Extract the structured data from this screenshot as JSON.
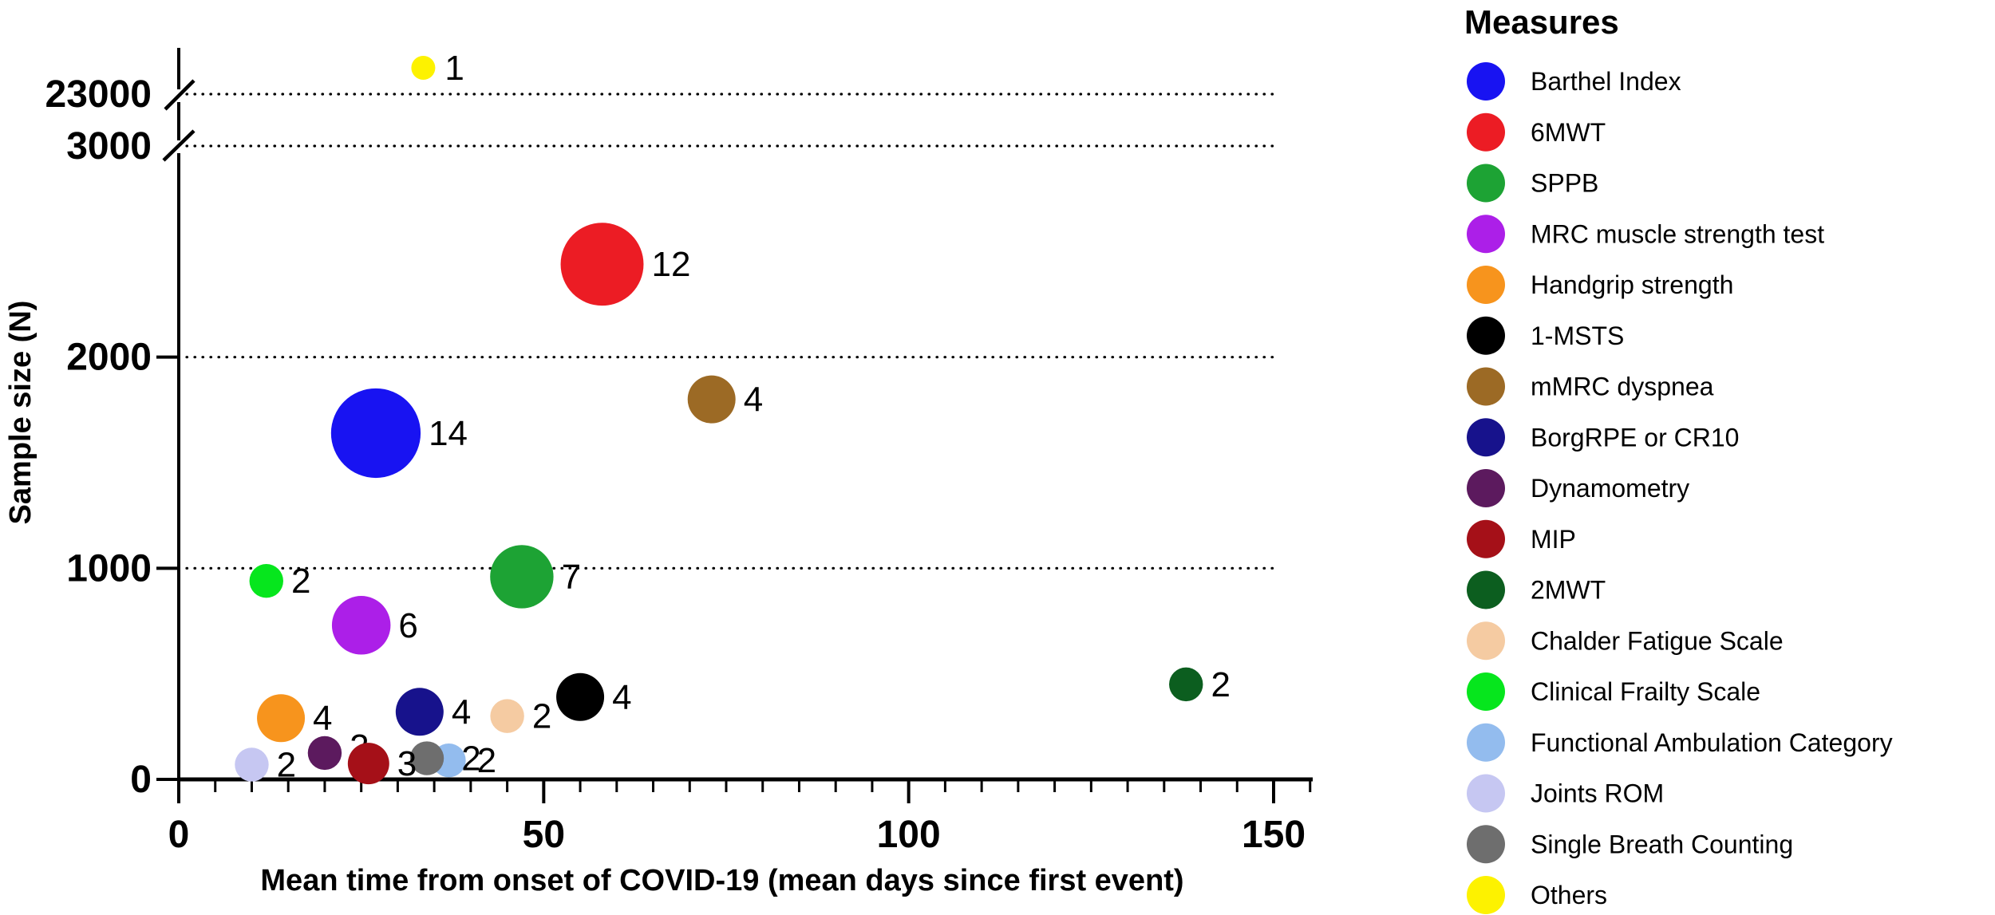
{
  "figure": {
    "kind": "bubble-plot scientific figure",
    "background": "#ffffff",
    "text_color": "#000000"
  },
  "legend": {
    "title": "Measures",
    "items": [
      {
        "label": "Barthel Index",
        "color": "#1813F2"
      },
      {
        "label": "6MWT",
        "color": "#EC1C24"
      },
      {
        "label": "SPPB",
        "color": "#1DA334"
      },
      {
        "label": "MRC muscle strength test",
        "color": "#AC1FE8"
      },
      {
        "label": "Handgrip strength",
        "color": "#F7941D"
      },
      {
        "label": "1-MSTS",
        "color": "#000000"
      },
      {
        "label": "mMRC dyspnea",
        "color": "#9C6A25"
      },
      {
        "label": "BorgRPE or CR10",
        "color": "#17128C"
      },
      {
        "label": "Dynamometry",
        "color": "#5C1A5E"
      },
      {
        "label": "MIP",
        "color": "#A51018"
      },
      {
        "label": "2MWT",
        "color": "#0C5E1F"
      },
      {
        "label": "Chalder Fatigue Scale",
        "color": "#F5CBA2"
      },
      {
        "label": "Clinical Frailty Scale",
        "color": "#06E61D"
      },
      {
        "label": "Functional Ambulation Category",
        "color": "#93BCEE"
      },
      {
        "label": "Joints ROM",
        "color": "#C6C7F2"
      },
      {
        "label": "Single Breath Counting",
        "color": "#6E6E6E"
      },
      {
        "label": "Others",
        "color": "#FDF200"
      }
    ]
  },
  "chart_data": {
    "type": "scatter",
    "subtype": "bubble",
    "x_axis": {
      "label": "Mean time from onset of COVID-19 (mean days since first event)",
      "ticks": [
        0,
        50,
        100,
        150
      ],
      "minor_tick_step": 5,
      "range": [
        0,
        155
      ]
    },
    "y_axis": {
      "label": "Sample size (N)",
      "ticks_shown": [
        0,
        1000,
        2000,
        3000,
        23000
      ],
      "axis_break_between": [
        3000,
        23000
      ],
      "dotted_gridlines_at": [
        1000,
        2000,
        3000,
        23000
      ],
      "range_lower_segment": [
        0,
        3000
      ]
    },
    "size_encoding": "bubble area proportional to number of studies; count printed beside each bubble",
    "points": [
      {
        "measure": "Barthel Index",
        "mean_days": 27,
        "sample_size": 1640,
        "n_studies": 14
      },
      {
        "measure": "6MWT",
        "mean_days": 58,
        "sample_size": 2440,
        "n_studies": 12
      },
      {
        "measure": "SPPB",
        "mean_days": 47,
        "sample_size": 960,
        "n_studies": 7
      },
      {
        "measure": "MRC muscle strength test",
        "mean_days": 25,
        "sample_size": 730,
        "n_studies": 6
      },
      {
        "measure": "Handgrip strength",
        "mean_days": 14,
        "sample_size": 290,
        "n_studies": 4
      },
      {
        "measure": "1-MSTS",
        "mean_days": 55,
        "sample_size": 390,
        "n_studies": 4
      },
      {
        "measure": "mMRC dyspnea",
        "mean_days": 73,
        "sample_size": 1800,
        "n_studies": 4
      },
      {
        "measure": "BorgRPE or CR10",
        "mean_days": 33,
        "sample_size": 320,
        "n_studies": 4
      },
      {
        "measure": "Dynamometry",
        "mean_days": 20,
        "sample_size": 125,
        "n_studies": 2,
        "label_dy": -8,
        "label_under": true
      },
      {
        "measure": "MIP",
        "mean_days": 26,
        "sample_size": 75,
        "n_studies": 3
      },
      {
        "measure": "2MWT",
        "mean_days": 138,
        "sample_size": 450,
        "n_studies": 2
      },
      {
        "measure": "Chalder Fatigue Scale",
        "mean_days": 45,
        "sample_size": 300,
        "n_studies": 2
      },
      {
        "measure": "Clinical Frailty Scale",
        "mean_days": 12,
        "sample_size": 940,
        "n_studies": 2
      },
      {
        "measure": "Functional Ambulation Category",
        "mean_days": 37,
        "sample_size": 90,
        "n_studies": 2,
        "label_dx": 14
      },
      {
        "measure": "Joints ROM",
        "mean_days": 10,
        "sample_size": 70,
        "n_studies": 2
      },
      {
        "measure": "Single Breath Counting",
        "mean_days": 34,
        "sample_size": 100,
        "n_studies": 2,
        "label_dx": 22
      },
      {
        "measure": "Others",
        "mean_days": 33.5,
        "sample_size": 23500,
        "n_studies": 1,
        "above_break": true,
        "note": "plotted above the 23000 axis break",
        "label_dx": 12
      }
    ]
  }
}
